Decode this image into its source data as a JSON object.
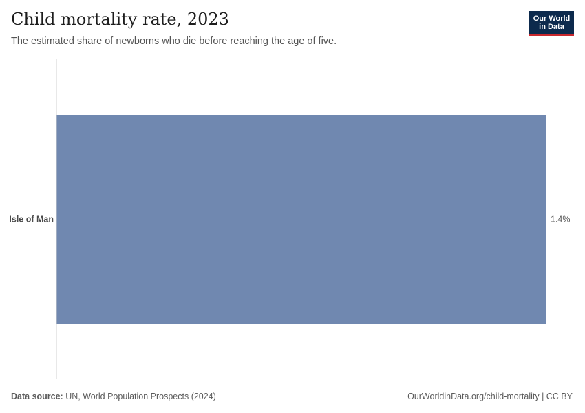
{
  "header": {
    "title": "Child mortality rate, 2023",
    "subtitle": "The estimated share of newborns who die before reaching the age of five."
  },
  "logo": {
    "line1": "Our World",
    "line2": "in Data"
  },
  "footer": {
    "source_label": "Data source:",
    "source_text": " UN, World Population Prospects (2024)",
    "right_text": "OurWorldinData.org/child-mortality | CC BY"
  },
  "colors": {
    "bar": "#7088b0",
    "axis": "#d0d0d0",
    "logo_bg": "#0d2a4d",
    "logo_accent": "#c9282d"
  },
  "chart_data": {
    "type": "bar",
    "orientation": "horizontal",
    "title": "Child mortality rate, 2023",
    "subtitle": "The estimated share of newborns who die before reaching the age of five.",
    "categories": [
      "Isle of Man"
    ],
    "values": [
      1.4
    ],
    "value_labels": [
      "1.4%"
    ],
    "unit": "%",
    "xlim": [
      0,
      1.4
    ],
    "grid": false,
    "legend": "none"
  }
}
